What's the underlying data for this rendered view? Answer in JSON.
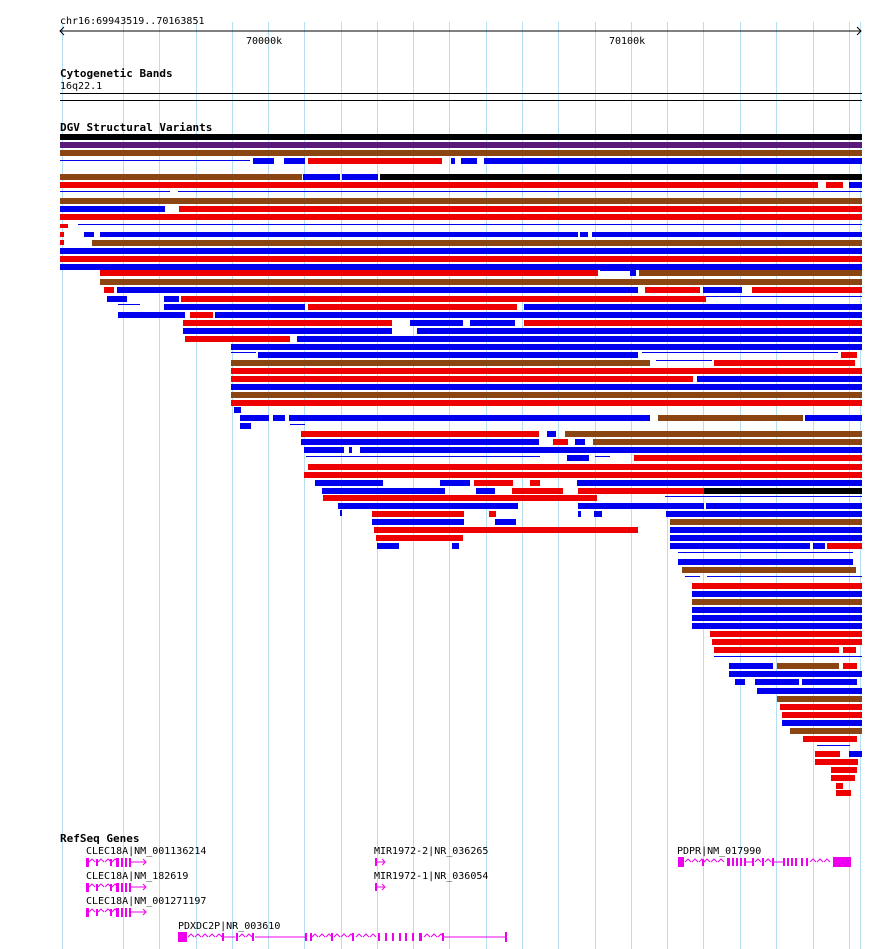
{
  "ruler": {
    "location": "chr16:69943519..70163851",
    "ticks": [
      "70000k",
      "70100k"
    ]
  },
  "cytoband": {
    "title": "Cytogenetic Bands",
    "band": "16q22.1"
  },
  "dgv": {
    "title": "DGV Structural Variants",
    "variant_colors": {
      "loss": "#ee0000",
      "gain": "#0000ee",
      "both": "#8b4513",
      "complex": "#5a1a7a",
      "other": "#000000"
    }
  },
  "refseq": {
    "title": "RefSeq Genes",
    "gene_color": "#ee00ee",
    "genes": [
      {
        "label": "CLEC18A|NM_001136214"
      },
      {
        "label": "CLEC18A|NM_182619"
      },
      {
        "label": "CLEC18A|NM_001271197"
      },
      {
        "label": "PDXDC2P|NR_003610"
      },
      {
        "label": "MIR1972-2|NR_036265"
      },
      {
        "label": "MIR1972-1|NR_036054"
      },
      {
        "label": "PDPR|NM_017990"
      }
    ]
  }
}
